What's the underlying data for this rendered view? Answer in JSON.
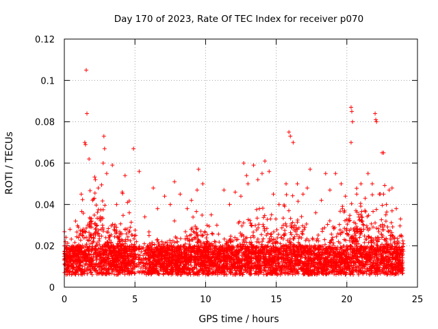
{
  "chart_data": {
    "type": "scatter",
    "title": "Day 170 of 2023, Rate Of TEC Index for receiver p070",
    "xlabel": "GPS time / hours",
    "ylabel": "ROTI / TECUs",
    "xlim": [
      0,
      25
    ],
    "ylim": [
      0,
      0.12
    ],
    "xticks": [
      0,
      5,
      10,
      15,
      20,
      25
    ],
    "xtick_labels": [
      "0",
      "5",
      "10",
      "15",
      "20",
      "25"
    ],
    "yticks": [
      0,
      0.02,
      0.04,
      0.06,
      0.08,
      0.1,
      0.12
    ],
    "ytick_labels": [
      "0",
      "0.02",
      "0.04",
      "0.06",
      "0.08",
      "0.1",
      "0.12"
    ],
    "grid": true,
    "marker": "+",
    "series": [
      {
        "name": "ROTI",
        "color": "#ff0000",
        "note_dense_band": "dense scatter mostly between 0.005 and 0.03 over 0-24 h",
        "x": [
          1.55,
          1.6,
          1.45,
          1.5,
          1.75,
          2.8,
          2.85,
          2.75,
          3.4,
          4.9,
          5.3,
          9.5,
          12.7,
          13.4,
          14.2,
          15.9,
          16.0,
          16.2,
          17.4,
          20.3,
          20.35,
          20.4,
          20.3,
          22.0,
          22.05,
          22.1,
          22.5,
          22.6,
          2.2,
          3.0,
          4.3,
          6.3,
          7.8,
          9.4,
          11.3,
          12.9,
          14.5,
          15.7,
          18.5,
          19.2,
          21.5,
          23.2,
          0.4,
          0.8,
          1.2,
          2.0,
          2.4,
          3.7,
          4.1,
          4.6,
          5.1,
          5.7,
          6.0,
          6.6,
          7.1,
          7.5,
          8.2,
          8.7,
          9.0,
          9.8,
          10.4,
          10.8,
          11.7,
          12.1,
          12.5,
          13.0,
          13.7,
          14.0,
          14.8,
          15.2,
          15.5,
          16.5,
          16.9,
          17.2,
          17.8,
          18.2,
          18.8,
          19.6,
          19.9,
          20.7,
          21.0,
          21.3,
          21.8,
          22.3,
          22.8,
          23.0,
          23.5,
          23.8,
          0.2,
          0.6,
          1.0,
          1.8,
          2.6,
          3.2,
          3.9,
          4.4,
          5.5,
          6.8,
          7.3,
          8.0,
          8.5,
          9.2,
          10.0,
          10.6,
          11.0,
          11.5,
          12.3,
          13.2,
          14.4,
          15.0,
          16.7,
          18.0,
          19.0,
          19.4,
          20.0,
          21.2,
          22.9,
          23.6
        ],
        "y": [
          0.105,
          0.084,
          0.07,
          0.069,
          0.062,
          0.073,
          0.067,
          0.06,
          0.059,
          0.067,
          0.056,
          0.057,
          0.06,
          0.059,
          0.061,
          0.075,
          0.073,
          0.07,
          0.057,
          0.087,
          0.085,
          0.08,
          0.07,
          0.084,
          0.081,
          0.08,
          0.065,
          0.065,
          0.052,
          0.055,
          0.054,
          0.048,
          0.051,
          0.047,
          0.047,
          0.054,
          0.056,
          0.05,
          0.055,
          0.055,
          0.055,
          0.048,
          0.028,
          0.032,
          0.045,
          0.042,
          0.048,
          0.04,
          0.046,
          0.036,
          0.022,
          0.034,
          0.025,
          0.038,
          0.044,
          0.04,
          0.045,
          0.038,
          0.042,
          0.05,
          0.035,
          0.03,
          0.04,
          0.046,
          0.044,
          0.05,
          0.052,
          0.055,
          0.045,
          0.04,
          0.03,
          0.05,
          0.045,
          0.048,
          0.036,
          0.042,
          0.047,
          0.05,
          0.044,
          0.045,
          0.05,
          0.043,
          0.05,
          0.045,
          0.04,
          0.047,
          0.038,
          0.033,
          0.015,
          0.02,
          0.024,
          0.03,
          0.028,
          0.025,
          0.022,
          0.018,
          0.012,
          0.016,
          0.02,
          0.022,
          0.018,
          0.024,
          0.02,
          0.014,
          0.012,
          0.018,
          0.02,
          0.024,
          0.026,
          0.022,
          0.02,
          0.018,
          0.024,
          0.022,
          0.026,
          0.028,
          0.02,
          0.018
        ]
      }
    ]
  }
}
